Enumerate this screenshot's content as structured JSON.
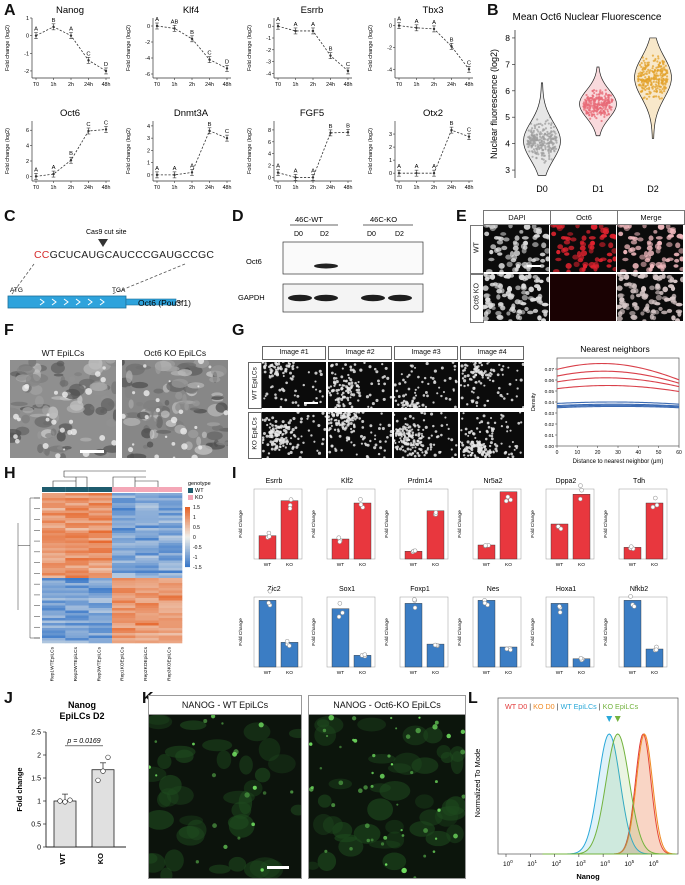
{
  "panels": [
    "A",
    "B",
    "C",
    "D",
    "E",
    "F",
    "G",
    "H",
    "I",
    "J",
    "K",
    "L"
  ],
  "panelA": {
    "xticks": [
      "T0",
      "1h",
      "2h",
      "24h",
      "48h"
    ],
    "ylabel": "Fold change (log2)",
    "plots": [
      {
        "title": "Nanog",
        "values": [
          0,
          0.5,
          0,
          -1.4,
          -2.0
        ],
        "letters": [
          "A",
          "B",
          "A",
          "C",
          "D"
        ],
        "yticks": [
          "1",
          "0",
          "-1",
          "-2"
        ],
        "ylim": [
          -2.4,
          1.0
        ]
      },
      {
        "title": "Klf4",
        "values": [
          0,
          -0.3,
          -1.6,
          -4.2,
          -5.3
        ],
        "letters": [
          "A",
          "AB",
          "B",
          "C",
          "D"
        ],
        "yticks": [
          "0",
          "-2",
          "-4",
          "-6"
        ],
        "ylim": [
          -6.5,
          1.0
        ]
      },
      {
        "title": "Esrrb",
        "values": [
          0,
          -0.4,
          -0.4,
          -2.5,
          -3.8
        ],
        "letters": [
          "A",
          "A",
          "A",
          "B",
          "C"
        ],
        "yticks": [
          "0",
          "-1",
          "-2",
          "-3",
          "-4"
        ],
        "ylim": [
          -4.4,
          0.7
        ]
      },
      {
        "title": "Tbx3",
        "values": [
          0,
          -0.2,
          -0.3,
          -1.9,
          -4.0
        ],
        "letters": [
          "A",
          "A",
          "A",
          "B",
          "C"
        ],
        "yticks": [
          "0",
          "-2",
          "-4"
        ],
        "ylim": [
          -4.8,
          0.7
        ]
      },
      {
        "title": "Oct6",
        "values": [
          0,
          0.3,
          2.1,
          5.9,
          6.1
        ],
        "letters": [
          "A",
          "A",
          "B",
          "C",
          "C"
        ],
        "yticks": [
          "0",
          "2",
          "4",
          "6"
        ],
        "ylim": [
          -0.6,
          7.2
        ]
      },
      {
        "title": "Dnmt3A",
        "values": [
          0,
          0,
          0.2,
          3.6,
          3.0
        ],
        "letters": [
          "A",
          "A",
          "A",
          "B",
          "C"
        ],
        "yticks": [
          "0",
          "1",
          "2",
          "3",
          "4"
        ],
        "ylim": [
          -0.5,
          4.4
        ]
      },
      {
        "title": "FGF5",
        "values": [
          0.8,
          0,
          0,
          7.5,
          7.6
        ],
        "letters": [
          "A",
          "A",
          "A",
          "B",
          "B"
        ],
        "yticks": [
          "0",
          "2",
          "4",
          "6",
          "8"
        ],
        "ylim": [
          -0.6,
          9.5
        ]
      },
      {
        "title": "Otx2",
        "values": [
          0,
          0,
          0,
          3.3,
          2.8
        ],
        "letters": [
          "A",
          "A",
          "A",
          "B",
          "C"
        ],
        "yticks": [
          "0",
          "1",
          "2",
          "3"
        ],
        "ylim": [
          -0.6,
          4.0
        ]
      }
    ]
  },
  "panelB": {
    "chart_data": {
      "type": "scatter",
      "title": "Mean Oct6 Nuclear Fluorescence",
      "categories": [
        "D0",
        "D1",
        "D2"
      ],
      "ylabel": "Nuclear fluorescence (log2)",
      "ylim": [
        2.7,
        8.3
      ],
      "yticks": [
        3,
        4,
        5,
        6,
        7,
        8
      ],
      "series": [
        {
          "name": "D0",
          "median": 4.1,
          "range": [
            2.8,
            6.3
          ],
          "color": "#9e9e9e"
        },
        {
          "name": "D1",
          "median": 5.5,
          "range": [
            4.3,
            6.9
          ],
          "color": "#e86a77"
        },
        {
          "name": "D2",
          "median": 6.5,
          "range": [
            4.2,
            8.0
          ],
          "color": "#e3a22a"
        }
      ]
    }
  },
  "panelC": {
    "cut_site": "Cas9 cut site",
    "pam": "CC",
    "sequence": "GCUCAUGCAUCCCGAUGCCGC",
    "atg": "ATG",
    "tga": "TGA",
    "gene": "Oct6 (Pou3f1)"
  },
  "panelD": {
    "groups": [
      "46C-WT",
      "46C-KO"
    ],
    "lanes": [
      "D0",
      "D2",
      "D0",
      "D2"
    ],
    "rows": [
      "Oct6",
      "GAPDH"
    ]
  },
  "panelE": {
    "columns": [
      "DAPI",
      "Oct6",
      "Merge"
    ],
    "rows": [
      "WT",
      "Oct6 KO"
    ]
  },
  "panelF": {
    "labels": [
      "WT EpiLCs",
      "Oct6 KO EpiLCs"
    ]
  },
  "panelG": {
    "columns": [
      "Image #1",
      "Image #2",
      "Image #3",
      "Image #4"
    ],
    "rows": [
      "WT EpiLCs",
      "KO EpiLCs"
    ],
    "density": {
      "title": "Nearest neighbors",
      "xlabel": "Distance to nearest neighbor (μm)",
      "ylabel": "Density",
      "xticks": [
        "0",
        "10",
        "20",
        "30",
        "40",
        "50",
        "60"
      ],
      "yticks": [
        "0.00",
        "0.01",
        "0.02",
        "0.03",
        "0.04",
        "0.05",
        "0.06",
        "0.07"
      ],
      "series": [
        {
          "name": "WT",
          "color": "#d9404a",
          "peaks": [
            [
              22,
              0.075
            ],
            [
              23,
              0.068
            ],
            [
              24,
              0.062
            ],
            [
              25,
              0.055
            ]
          ]
        },
        {
          "name": "KO",
          "color": "#3c6bb3",
          "peaks": [
            [
              27,
              0.04
            ],
            [
              28,
              0.038
            ],
            [
              29,
              0.037
            ],
            [
              30,
              0.036
            ]
          ]
        }
      ]
    }
  },
  "panelH": {
    "legend_title": "genotype",
    "legend": [
      {
        "label": "WT",
        "color": "#1f5c6e"
      },
      {
        "label": "KO",
        "color": "#f4a7b7"
      }
    ],
    "scale": [
      "1.5",
      "1",
      "0.5",
      "0",
      "-0.5",
      "-1",
      "-1.5"
    ],
    "samples": [
      "Rep1WTEpiLCs",
      "Rep2WTEpiLCs",
      "Rep3WTEpiLCs",
      "Rep1KOEpiLCs",
      "Rep2KOEpiLCs",
      "Rep3KOEpiLCs"
    ]
  },
  "panelI": {
    "chart_data": {
      "type": "bar",
      "categories": [
        "WT",
        "KO"
      ],
      "ylabel": "Fold Change",
      "genes": [
        {
          "name": "Esrrb",
          "values": [
            1.0,
            2.5
          ],
          "ymax": 3,
          "color": "#e8373e"
        },
        {
          "name": "Klf2",
          "values": [
            1.0,
            2.8
          ],
          "ymax": 3.5,
          "color": "#e8373e"
        },
        {
          "name": "Prdm14",
          "values": [
            1.0,
            6.2
          ],
          "ymax": 9,
          "color": "#e8373e"
        },
        {
          "name": "Nr5a2",
          "values": [
            1.0,
            4.8
          ],
          "ymax": 5,
          "color": "#e8373e"
        },
        {
          "name": "Dppa2",
          "values": [
            1.0,
            1.85
          ],
          "ymax": 2,
          "color": "#e8373e"
        },
        {
          "name": "Tdh",
          "values": [
            1.0,
            4.8
          ],
          "ymax": 6,
          "color": "#e8373e"
        },
        {
          "name": "Zic2",
          "values": [
            1.0,
            0.37
          ],
          "ymax": 1.05,
          "color": "#3b7dc4"
        },
        {
          "name": "Sox1",
          "values": [
            1.0,
            0.2
          ],
          "ymax": 1.2,
          "color": "#3b7dc4"
        },
        {
          "name": "Foxp1",
          "values": [
            1.0,
            0.36
          ],
          "ymax": 1.1,
          "color": "#3b7dc4"
        },
        {
          "name": "Nes",
          "values": [
            1.0,
            0.3
          ],
          "ymax": 1.05,
          "color": "#3b7dc4"
        },
        {
          "name": "Hoxa1",
          "values": [
            1.0,
            0.13
          ],
          "ymax": 1.1,
          "color": "#3b7dc4"
        },
        {
          "name": "Nfkb2",
          "values": [
            1.0,
            0.27
          ],
          "ymax": 1.05,
          "color": "#3b7dc4"
        }
      ]
    }
  },
  "panelJ": {
    "chart_data": {
      "type": "bar",
      "title": "Nanog EpiLCs D2",
      "categories": [
        "WT",
        "KO"
      ],
      "values": [
        1.0,
        1.68
      ],
      "points": [
        [
          1.0,
          0.98,
          1.02
        ],
        [
          1.45,
          1.65,
          1.95
        ]
      ],
      "ylabel": "Fold change",
      "yticks": [
        "0",
        "0.5",
        "1",
        "1.5",
        "2",
        "2.5"
      ],
      "ylim": [
        0,
        2.5
      ],
      "annotation": "p = 0.0169"
    }
  },
  "panelK": {
    "labels": [
      "NANOG - WT EpiLCs",
      "NANOG - Oct6-KO EpiLCs"
    ]
  },
  "panelL": {
    "legend": [
      {
        "label": "WT D0",
        "color": "#e23b3b"
      },
      {
        "label": "KO D0",
        "color": "#f08a24"
      },
      {
        "label": "WT EpiLCs",
        "color": "#29a8d9"
      },
      {
        "label": "KO EpiLCs",
        "color": "#73b33e"
      }
    ],
    "separator": "|",
    "ylabel": "Normalized To Mode",
    "xlabel": "Nanog",
    "xticks": [
      "10",
      "10",
      "10",
      "10",
      "10",
      "10",
      "10"
    ],
    "xexp": [
      "0",
      "1",
      "2",
      "3",
      "4",
      "5",
      "6"
    ]
  }
}
